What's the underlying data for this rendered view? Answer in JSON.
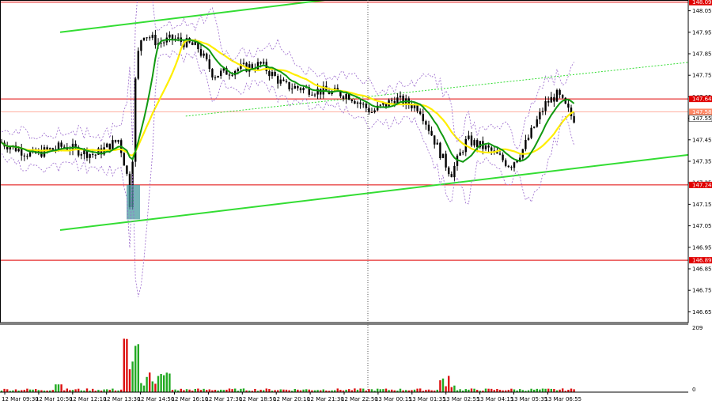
{
  "chart_data": {
    "type": "candlestick",
    "symbol_panel": "price",
    "price_axis": {
      "ticks": [
        "148.05",
        "147.95",
        "147.85",
        "147.75",
        "147.65",
        "147.55",
        "147.45",
        "147.35",
        "147.25",
        "147.15",
        "147.05",
        "146.95",
        "146.85",
        "146.75",
        "146.65"
      ],
      "ylim": [
        146.6,
        148.1
      ]
    },
    "time_axis": {
      "ticks": [
        "12 Mar 09:30",
        "12 Mar 10:50",
        "12 Mar 12:10",
        "12 Mar 13:30",
        "12 Mar 14:50",
        "12 Mar 16:10",
        "12 Mar 17:30",
        "12 Mar 18:50",
        "12 Mar 20:10",
        "12 Mar 21:30",
        "12 Mar 22:50",
        "13 Mar 00:15",
        "13 Mar 01:35",
        "13 Mar 02:55",
        "13 Mar 04:15",
        "13 Mar 05:35",
        "13 Mar 06:55"
      ]
    },
    "levels": [
      {
        "price": "148.09",
        "value": 148.09,
        "color": "#e00000"
      },
      {
        "price": "147.64",
        "value": 147.64,
        "color": "#e00000"
      },
      {
        "price": "147.24",
        "value": 147.24,
        "color": "#e00000"
      },
      {
        "price": "146.89",
        "value": 146.89,
        "color": "#e00000"
      }
    ],
    "current_price": {
      "label": "147.55",
      "value": 147.55
    },
    "secondary_price": {
      "label": "147.58",
      "value": 147.58
    },
    "trend_channel": {
      "upper": [
        [
          0,
          147.95
        ],
        [
          0.45,
          148.11
        ]
      ],
      "lower": [
        [
          0,
          147.03
        ],
        [
          1,
          147.38
        ]
      ],
      "dotted": [
        [
          0.2,
          147.56
        ],
        [
          1,
          147.81
        ]
      ]
    },
    "volume_axis": {
      "max_label": "209",
      "min_label": "0",
      "max": 209
    },
    "colors": {
      "level": "#e00000",
      "channel": "#33dd33",
      "ma_fast": "#119911",
      "ma_slow": "#ffee00",
      "bollinger": "#9966cc",
      "candle": "#000000",
      "volume_up": "#22aa22",
      "volume_down": "#dd1111",
      "highlight": "#4a9aa0"
    }
  }
}
